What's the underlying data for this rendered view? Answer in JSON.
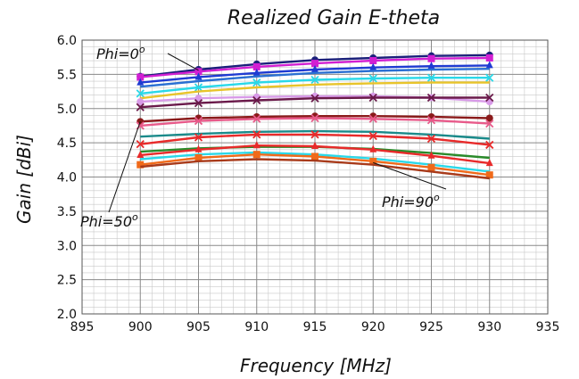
{
  "chart_data": {
    "type": "line",
    "title": "Realized Gain E-theta",
    "xlabel": "Frequency   [MHz]",
    "ylabel": "Gain   [dBi]",
    "xlim": [
      895,
      935
    ],
    "ylim": [
      2.0,
      6.0
    ],
    "x_ticks": [
      "895",
      "900",
      "905",
      "910",
      "915",
      "920",
      "925",
      "930",
      "935"
    ],
    "y_ticks": [
      "2.0",
      "2.5",
      "3.0",
      "3.5",
      "4.0",
      "4.5",
      "5.0",
      "5.5",
      "6.0"
    ],
    "grid": true,
    "x": [
      900,
      905,
      910,
      915,
      920,
      925,
      930
    ],
    "annotations": [
      {
        "text": "Phi=0",
        "sup": "o",
        "x": 905,
        "y": 5.56
      },
      {
        "text": "Phi=50",
        "sup": "o",
        "x": 900,
        "y": 4.81
      },
      {
        "text": "Phi=90",
        "sup": "o",
        "x": 920,
        "y": 4.21
      }
    ],
    "series": [
      {
        "color": "#1a1f7a",
        "marker": "circle",
        "values": [
          5.47,
          5.57,
          5.65,
          5.71,
          5.74,
          5.77,
          5.78
        ]
      },
      {
        "color": "#d21fd2",
        "marker": "square",
        "values": [
          5.46,
          5.54,
          5.61,
          5.66,
          5.7,
          5.73,
          5.74
        ]
      },
      {
        "color": "#1f3bd2",
        "marker": "triangle",
        "values": [
          5.38,
          5.46,
          5.52,
          5.57,
          5.6,
          5.62,
          5.63
        ]
      },
      {
        "color": "#2a6fd2",
        "marker": "none",
        "values": [
          5.32,
          5.4,
          5.47,
          5.52,
          5.55,
          5.57,
          5.58
        ]
      },
      {
        "color": "#2ad8e8",
        "marker": "x",
        "values": [
          5.22,
          5.31,
          5.38,
          5.42,
          5.44,
          5.45,
          5.45
        ]
      },
      {
        "color": "#e8c42a",
        "marker": "none",
        "values": [
          5.15,
          5.25,
          5.31,
          5.35,
          5.37,
          5.38,
          5.38
        ]
      },
      {
        "color": "#d89ae8",
        "marker": "circle",
        "values": [
          5.1,
          5.15,
          5.17,
          5.18,
          5.18,
          5.16,
          5.1
        ]
      },
      {
        "color": "#6a1a4a",
        "marker": "x",
        "values": [
          5.02,
          5.08,
          5.12,
          5.15,
          5.16,
          5.16,
          5.16
        ]
      },
      {
        "color": "#8a1a1a",
        "marker": "circle",
        "values": [
          4.81,
          4.86,
          4.88,
          4.89,
          4.89,
          4.88,
          4.86
        ]
      },
      {
        "color": "#e85a8a",
        "marker": "x",
        "values": [
          4.75,
          4.82,
          4.85,
          4.86,
          4.85,
          4.83,
          4.78
        ]
      },
      {
        "color": "#1a8a8a",
        "marker": "none",
        "values": [
          4.59,
          4.63,
          4.66,
          4.67,
          4.66,
          4.62,
          4.56
        ]
      },
      {
        "color": "#e82a2a",
        "marker": "x",
        "values": [
          4.48,
          4.58,
          4.62,
          4.62,
          4.6,
          4.56,
          4.47
        ]
      },
      {
        "color": "#2a8a2a",
        "marker": "none",
        "values": [
          4.37,
          4.42,
          4.44,
          4.44,
          4.41,
          4.35,
          4.28
        ]
      },
      {
        "color": "#e82a2a",
        "marker": "triangle",
        "values": [
          4.32,
          4.4,
          4.46,
          4.45,
          4.4,
          4.31,
          4.2
        ]
      },
      {
        "color": "#2ad8e8",
        "marker": "none",
        "values": [
          4.26,
          4.33,
          4.36,
          4.33,
          4.27,
          4.18,
          4.08
        ]
      },
      {
        "color": "#f06a1a",
        "marker": "square",
        "values": [
          4.18,
          4.28,
          4.33,
          4.3,
          4.23,
          4.14,
          4.03
        ]
      },
      {
        "color": "#a83a1a",
        "marker": "none",
        "values": [
          4.15,
          4.23,
          4.26,
          4.24,
          4.18,
          4.08,
          3.98
        ]
      }
    ]
  }
}
